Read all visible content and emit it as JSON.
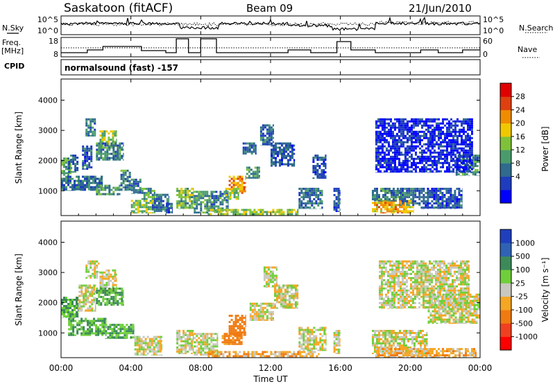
{
  "header": {
    "station": "Saskatoon (fitACF)",
    "beam": "Beam 09",
    "date": "21/Jun/2010",
    "cpid": "normalsound (fast) -157"
  },
  "left_labels": {
    "nsky": "N.Sky",
    "freq_line1": "Freq.",
    "freq_line2": "[MHz]",
    "cpid": "CPID"
  },
  "right_labels": {
    "nsearch": "N.Search",
    "nave": "Nave"
  },
  "noise_ticks": {
    "high": "10^5",
    "low": "10^0"
  },
  "freq_ticks": [
    "18",
    "8"
  ],
  "nave_ticks": [
    "60",
    "0"
  ],
  "colorbars": {
    "power": {
      "label": "Power [dB]",
      "ticks": [
        "28",
        "24",
        "20",
        "16",
        "12",
        "8",
        "4"
      ],
      "colors": [
        "#0000ff",
        "#1e3cbe",
        "#2f6a8f",
        "#4a9b6c",
        "#7fc23a",
        "#f0c800",
        "#f08c00",
        "#e04010",
        "#e00000"
      ]
    },
    "velocity": {
      "label": "Velocity [m s⁻¹]",
      "ticks": [
        "1000",
        "500",
        "100",
        "25",
        "-25",
        "-100",
        "-500",
        "-1000"
      ],
      "colors": [
        "#1f3fbf",
        "#2f62b5",
        "#3c8a5a",
        "#6fcf3a",
        "#c8c8c0",
        "#f5a623",
        "#f07a10",
        "#f04020",
        "#ff0000"
      ]
    }
  },
  "chart_data": [
    {
      "type": "heatmap",
      "title": "Power",
      "xlabel": "",
      "ylabel": "Slant Range [km]",
      "xticks": [
        "00:00",
        "04:00",
        "08:00",
        "12:00",
        "16:00",
        "20:00",
        "00:00"
      ],
      "xlim": [
        0,
        24
      ],
      "yticks": [
        "1000",
        "2000",
        "3000",
        "4000"
      ],
      "ylim": [
        180,
        4700
      ],
      "zlabel": "Power [dB]",
      "zlim": [
        0,
        30
      ],
      "regions": [
        {
          "x": [
            0.0,
            0.6
          ],
          "y": [
            1500,
            2100
          ],
          "value": 16
        },
        {
          "x": [
            0.4,
            1.0
          ],
          "y": [
            1600,
            2200
          ],
          "value": 10
        },
        {
          "x": [
            1.2,
            1.8
          ],
          "y": [
            1700,
            2500
          ],
          "value": 8
        },
        {
          "x": [
            1.4,
            2.0
          ],
          "y": [
            2800,
            3400
          ],
          "value": 10
        },
        {
          "x": [
            2.2,
            3.2
          ],
          "y": [
            2400,
            3000
          ],
          "value": 18
        },
        {
          "x": [
            2.0,
            3.6
          ],
          "y": [
            2000,
            2600
          ],
          "value": 12
        },
        {
          "x": [
            0.0,
            2.4
          ],
          "y": [
            1000,
            1500
          ],
          "value": 10
        },
        {
          "x": [
            2.0,
            3.4
          ],
          "y": [
            850,
            1200
          ],
          "value": 14
        },
        {
          "x": [
            3.4,
            4.0
          ],
          "y": [
            1000,
            1700
          ],
          "value": 12
        },
        {
          "x": [
            4.0,
            4.6
          ],
          "y": [
            900,
            1400
          ],
          "value": 10
        },
        {
          "x": [
            4.0,
            5.4
          ],
          "y": [
            250,
            700
          ],
          "value": 18
        },
        {
          "x": [
            4.6,
            5.4
          ],
          "y": [
            700,
            1100
          ],
          "value": 14
        },
        {
          "x": [
            5.2,
            6.2
          ],
          "y": [
            300,
            900
          ],
          "value": 10
        },
        {
          "x": [
            6.0,
            6.4
          ],
          "y": [
            250,
            600
          ],
          "value": 8
        },
        {
          "x": [
            6.6,
            7.6
          ],
          "y": [
            400,
            1100
          ],
          "value": 16
        },
        {
          "x": [
            7.6,
            8.6
          ],
          "y": [
            250,
            1000
          ],
          "value": 14
        },
        {
          "x": [
            8.6,
            9.6
          ],
          "y": [
            300,
            1000
          ],
          "value": 12
        },
        {
          "x": [
            9.6,
            10.6
          ],
          "y": [
            900,
            1500
          ],
          "value": 26
        },
        {
          "x": [
            9.4,
            10.2
          ],
          "y": [
            700,
            1100
          ],
          "value": 18
        },
        {
          "x": [
            10.6,
            11.4
          ],
          "y": [
            1400,
            1800
          ],
          "value": 14
        },
        {
          "x": [
            10.4,
            11.2
          ],
          "y": [
            2200,
            2600
          ],
          "value": 10
        },
        {
          "x": [
            11.4,
            12.2
          ],
          "y": [
            2500,
            3200
          ],
          "value": 10
        },
        {
          "x": [
            12.0,
            13.4
          ],
          "y": [
            1800,
            2600
          ],
          "value": 8
        },
        {
          "x": [
            8.4,
            13.6
          ],
          "y": [
            180,
            400
          ],
          "value": 18
        },
        {
          "x": [
            13.6,
            15.0
          ],
          "y": [
            400,
            1100
          ],
          "value": 10
        },
        {
          "x": [
            14.4,
            15.2
          ],
          "y": [
            1400,
            2200
          ],
          "value": 8
        },
        {
          "x": [
            15.6,
            16.0
          ],
          "y": [
            300,
            1100
          ],
          "value": 8
        },
        {
          "x": [
            17.8,
            20.2
          ],
          "y": [
            250,
            700
          ],
          "value": 24
        },
        {
          "x": [
            17.8,
            19.6
          ],
          "y": [
            650,
            1100
          ],
          "value": 12
        },
        {
          "x": [
            19.4,
            20.6
          ],
          "y": [
            500,
            1100
          ],
          "value": 10
        },
        {
          "x": [
            20.6,
            23.0
          ],
          "y": [
            400,
            1100
          ],
          "value": 8
        },
        {
          "x": [
            22.6,
            24.0
          ],
          "y": [
            1500,
            2200
          ],
          "value": 12
        },
        {
          "x": [
            18.0,
            23.6
          ],
          "y": [
            1600,
            3400
          ],
          "value": 4
        }
      ]
    },
    {
      "type": "heatmap",
      "title": "Velocity",
      "xlabel": "Time UT",
      "ylabel": "Slant Range [km]",
      "xticks": [
        "00:00",
        "04:00",
        "08:00",
        "12:00",
        "16:00",
        "20:00",
        "00:00"
      ],
      "xlim": [
        0,
        24
      ],
      "yticks": [
        "1000",
        "2000",
        "3000",
        "4000"
      ],
      "ylim": [
        180,
        4700
      ],
      "zlabel": "Velocity [m s⁻¹]",
      "zlim": [
        -1000,
        1000
      ],
      "regions": [
        {
          "x": [
            0.0,
            1.0
          ],
          "y": [
            1500,
            2200
          ],
          "value": 100
        },
        {
          "x": [
            1.0,
            2.0
          ],
          "y": [
            1700,
            2600
          ],
          "value": 0
        },
        {
          "x": [
            1.4,
            2.2
          ],
          "y": [
            2800,
            3400
          ],
          "value": 0
        },
        {
          "x": [
            2.2,
            3.2
          ],
          "y": [
            2300,
            3100
          ],
          "value": 0
        },
        {
          "x": [
            2.0,
            3.6
          ],
          "y": [
            1900,
            2500
          ],
          "value": 100
        },
        {
          "x": [
            0.4,
            2.6
          ],
          "y": [
            900,
            1500
          ],
          "value": 100
        },
        {
          "x": [
            2.4,
            4.2
          ],
          "y": [
            800,
            1300
          ],
          "value": 100
        },
        {
          "x": [
            4.2,
            5.8
          ],
          "y": [
            250,
            900
          ],
          "value": 0
        },
        {
          "x": [
            6.6,
            7.6
          ],
          "y": [
            300,
            1100
          ],
          "value": 0
        },
        {
          "x": [
            7.6,
            9.0
          ],
          "y": [
            250,
            1000
          ],
          "value": 0
        },
        {
          "x": [
            9.6,
            10.6
          ],
          "y": [
            900,
            1600
          ],
          "value": -400
        },
        {
          "x": [
            9.2,
            10.4
          ],
          "y": [
            600,
            1000
          ],
          "value": -150
        },
        {
          "x": [
            10.8,
            12.2
          ],
          "y": [
            1400,
            2000
          ],
          "value": 0
        },
        {
          "x": [
            11.6,
            12.4
          ],
          "y": [
            2500,
            3200
          ],
          "value": 0
        },
        {
          "x": [
            12.2,
            13.6
          ],
          "y": [
            1800,
            2600
          ],
          "value": 0
        },
        {
          "x": [
            8.4,
            14.8
          ],
          "y": [
            180,
            400
          ],
          "value": -60
        },
        {
          "x": [
            13.6,
            15.2
          ],
          "y": [
            400,
            1200
          ],
          "value": 0
        },
        {
          "x": [
            15.6,
            16.0
          ],
          "y": [
            300,
            1100
          ],
          "value": 0
        },
        {
          "x": [
            17.8,
            21.0
          ],
          "y": [
            300,
            1100
          ],
          "value": 0
        },
        {
          "x": [
            18.0,
            23.8
          ],
          "y": [
            180,
            500
          ],
          "value": -60
        },
        {
          "x": [
            21.0,
            24.0
          ],
          "y": [
            1300,
            2300
          ],
          "value": 0
        },
        {
          "x": [
            18.2,
            23.4
          ],
          "y": [
            1800,
            3400
          ],
          "value": 0
        }
      ]
    }
  ]
}
